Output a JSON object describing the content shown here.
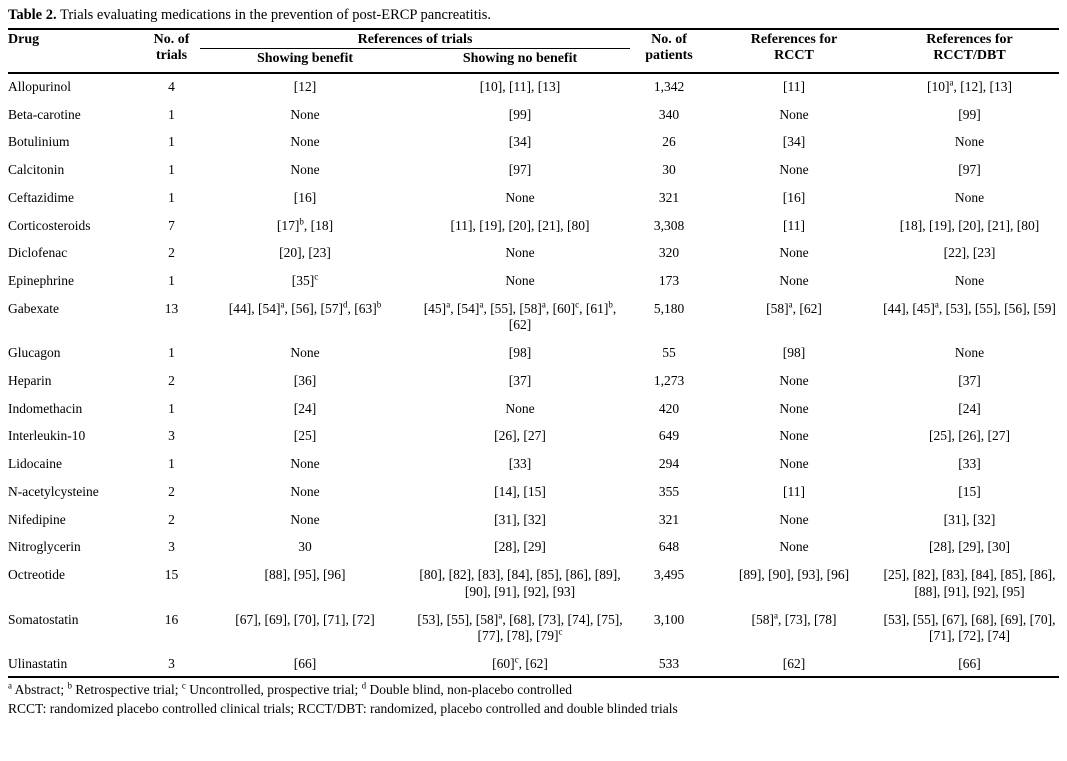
{
  "title": {
    "label": "Table 2.",
    "text": " Trials evaluating medications in the prevention of post-ERCP pancreatitis."
  },
  "header": {
    "drug": "Drug",
    "trials": "No. of\ntrials",
    "references_of_trials": "References of trials",
    "showing_benefit": "Showing benefit",
    "showing_no_benefit": "Showing no benefit",
    "patients": "No. of\npatients",
    "rcct": "References for\nRCCT",
    "rcct_dbt": "References for\nRCCT/DBT"
  },
  "rows": [
    {
      "drug": "Allopurinol",
      "trials": "4",
      "benefit": "[12]",
      "no_benefit": "[10], [11], [13]",
      "patients": "1,342",
      "rcct": "[11]",
      "rcct_dbt": "[10]^a, [12], [13]"
    },
    {
      "drug": "Beta-carotine",
      "trials": "1",
      "benefit": "None",
      "no_benefit": "[99]",
      "patients": "340",
      "rcct": "None",
      "rcct_dbt": "[99]"
    },
    {
      "drug": "Botulinium",
      "trials": "1",
      "benefit": "None",
      "no_benefit": "[34]",
      "patients": "26",
      "rcct": "[34]",
      "rcct_dbt": "None"
    },
    {
      "drug": "Calcitonin",
      "trials": "1",
      "benefit": "None",
      "no_benefit": "[97]",
      "patients": "30",
      "rcct": "None",
      "rcct_dbt": "[97]"
    },
    {
      "drug": "Ceftazidime",
      "trials": "1",
      "benefit": "[16]",
      "no_benefit": "None",
      "patients": "321",
      "rcct": "[16]",
      "rcct_dbt": "None"
    },
    {
      "drug": "Corticosteroids",
      "trials": "7",
      "benefit": "[17]^b, [18]",
      "no_benefit": "[11], [19], [20], [21], [80]",
      "patients": "3,308",
      "rcct": "[11]",
      "rcct_dbt": "[18], [19], [20], [21], [80]"
    },
    {
      "drug": "Diclofenac",
      "trials": "2",
      "benefit": "[20], [23]",
      "no_benefit": "None",
      "patients": "320",
      "rcct": "None",
      "rcct_dbt": "[22], [23]"
    },
    {
      "drug": "Epinephrine",
      "trials": "1",
      "benefit": "[35]^c",
      "no_benefit": "None",
      "patients": "173",
      "rcct": "None",
      "rcct_dbt": "None"
    },
    {
      "drug": "Gabexate",
      "trials": "13",
      "benefit": "[44], [54]^a, [56], [57]^d, [63]^b",
      "no_benefit": "[45]^a, [54]^a, [55], [58]^a, [60]^c, [61]^b, [62]",
      "patients": "5,180",
      "rcct": "[58]^a, [62]",
      "rcct_dbt": "[44], [45]^a, [53], [55], [56], [59]"
    },
    {
      "drug": "Glucagon",
      "trials": "1",
      "benefit": "None",
      "no_benefit": "[98]",
      "patients": "55",
      "rcct": "[98]",
      "rcct_dbt": "None"
    },
    {
      "drug": "Heparin",
      "trials": "2",
      "benefit": "[36]",
      "no_benefit": "[37]",
      "patients": "1,273",
      "rcct": "None",
      "rcct_dbt": "[37]"
    },
    {
      "drug": "Indomethacin",
      "trials": "1",
      "benefit": "[24]",
      "no_benefit": "None",
      "patients": "420",
      "rcct": "None",
      "rcct_dbt": "[24]"
    },
    {
      "drug": "Interleukin-10",
      "trials": "3",
      "benefit": "[25]",
      "no_benefit": "[26], [27]",
      "patients": "649",
      "rcct": "None",
      "rcct_dbt": "[25], [26], [27]"
    },
    {
      "drug": "Lidocaine",
      "trials": "1",
      "benefit": "None",
      "no_benefit": "[33]",
      "patients": "294",
      "rcct": "None",
      "rcct_dbt": "[33]"
    },
    {
      "drug": "N-acetylcysteine",
      "trials": "2",
      "benefit": "None",
      "no_benefit": "[14], [15]",
      "patients": "355",
      "rcct": "[11]",
      "rcct_dbt": "[15]"
    },
    {
      "drug": "Nifedipine",
      "trials": "2",
      "benefit": "None",
      "no_benefit": "[31], [32]",
      "patients": "321",
      "rcct": "None",
      "rcct_dbt": "[31], [32]"
    },
    {
      "drug": "Nitroglycerin",
      "trials": "3",
      "benefit": "30",
      "no_benefit": "[28], [29]",
      "patients": "648",
      "rcct": "None",
      "rcct_dbt": "[28], [29], [30]"
    },
    {
      "drug": "Octreotide",
      "trials": "15",
      "benefit": "[88], [95], [96]",
      "no_benefit": "[80], [82], [83], [84], [85], [86], [89], [90], [91], [92], [93]",
      "patients": "3,495",
      "rcct": "[89], [90], [93], [96]",
      "rcct_dbt": "[25], [82], [83], [84], [85], [86], [88], [91], [92], [95]"
    },
    {
      "drug": "Somatostatin",
      "trials": "16",
      "benefit": "[67], [69], [70], [71], [72]",
      "no_benefit": "[53], [55], [58]^a, [68], [73], [74], [75], [77], [78], [79]^c",
      "patients": "3,100",
      "rcct": "[58]^a, [73], [78]",
      "rcct_dbt": "[53], [55], [67], [68], [69], [70], [71], [72], [74]"
    },
    {
      "drug": "Ulinastatin",
      "trials": "3",
      "benefit": "[66]",
      "no_benefit": "[60]^c, [62]",
      "patients": "533",
      "rcct": "[62]",
      "rcct_dbt": "[66]"
    }
  ],
  "footnotes": {
    "line1": "^a Abstract; ^b Retrospective trial; ^c Uncontrolled, prospective trial; ^d Double blind, non-placebo controlled",
    "line2": "RCCT: randomized placebo controlled clinical trials; RCCT/DBT: randomized, placebo controlled and double blinded trials"
  }
}
